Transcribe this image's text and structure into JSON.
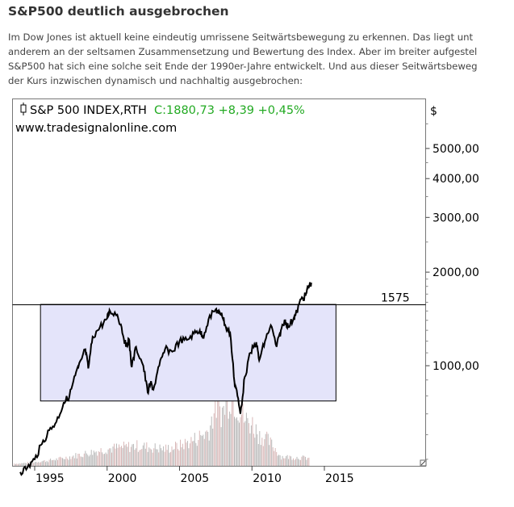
{
  "article": {
    "title": "S&P500 deutlich ausgebrochen",
    "paragraph_lines": [
      "Im Dow Jones ist aktuell keine eindeutig umrissene Seitwärtsbewegung zu erkennen. Das liegt unt",
      "anderem an der seltsamen Zusammensetzung und Bewertung des Index. Aber im breiter aufgestel",
      "S&P500 hat sich eine solche seit Ende der 1990er-Jahre entwickelt. Und aus dieser Seitwärtsbeweg",
      "der Kurs inzwischen dynamisch und nachhaltig ausgebrochen:"
    ]
  },
  "chart_data": {
    "type": "line",
    "instrument": "S&P 500 INDEX,RTH",
    "quote": "C:1880,73 +8,39 +0,45%",
    "source": "www.tradesignalonline.com",
    "currency_label": "$",
    "y_scale": "log",
    "ylim": [
      430,
      6500
    ],
    "xlim": [
      1993.5,
      2021.6
    ],
    "y_ticks": [
      {
        "v": 5000,
        "label": "5000,00"
      },
      {
        "v": 4000,
        "label": "4000,00"
      },
      {
        "v": 3000,
        "label": "3000,00"
      },
      {
        "v": 2000,
        "label": "2000,00"
      },
      {
        "v": 1000,
        "label": "1000,00"
      }
    ],
    "x_ticks": [
      {
        "v": 1995,
        "label": "1995"
      },
      {
        "v": 2000,
        "label": "2000"
      },
      {
        "v": 2005,
        "label": "2005"
      },
      {
        "v": 2010,
        "label": "2010"
      },
      {
        "v": 2015,
        "label": "2015"
      }
    ],
    "horizontal_line": {
      "value": 1575,
      "label": "1575"
    },
    "range_box": {
      "x_start": 1995.4,
      "x_end": 2015.8,
      "low": 770,
      "high": 1575,
      "color": "#e4e4fa"
    },
    "series": [
      {
        "color": "#000000",
        "x": [
          1994.0,
          1994.5,
          1995.0,
          1995.5,
          1996.0,
          1996.5,
          1997.0,
          1997.4,
          1997.8,
          1998.0,
          1998.5,
          1998.7,
          1999.0,
          1999.5,
          2000.0,
          2000.2,
          2000.7,
          2001.0,
          2001.3,
          2001.5,
          2001.7,
          2002.0,
          2002.5,
          2002.8,
          2003.0,
          2003.2,
          2003.6,
          2004.0,
          2004.5,
          2005.0,
          2005.5,
          2006.0,
          2006.4,
          2006.6,
          2007.0,
          2007.5,
          2007.7,
          2007.9,
          2008.2,
          2008.5,
          2008.8,
          2008.9,
          2009.2,
          2009.5,
          2009.9,
          2010.3,
          2010.5,
          2010.9,
          2011.3,
          2011.7,
          2012.0,
          2012.3,
          2012.5,
          2012.9,
          2013.0,
          2013.4,
          2013.7,
          2013.9,
          2014.1
        ],
        "y": [
          455,
          470,
          500,
          560,
          620,
          660,
          760,
          800,
          930,
          980,
          1130,
          980,
          1240,
          1330,
          1420,
          1500,
          1460,
          1330,
          1150,
          1220,
          990,
          1150,
          1000,
          820,
          880,
          840,
          1000,
          1130,
          1110,
          1200,
          1210,
          1270,
          1300,
          1230,
          1410,
          1520,
          1470,
          1480,
          1330,
          1270,
          880,
          850,
          700,
          920,
          1100,
          1190,
          1040,
          1200,
          1350,
          1150,
          1300,
          1400,
          1330,
          1430,
          1450,
          1640,
          1680,
          1800,
          1850
        ]
      }
    ],
    "volume_relative": {
      "x": [
        1994,
        1995,
        1996,
        1997,
        1998,
        1999,
        2000,
        2001,
        2002,
        2003,
        2004,
        2005,
        2006,
        2007,
        2007.5,
        2008,
        2008.5,
        2009,
        2009.5,
        2010,
        2010.5,
        2011,
        2011.5,
        2012,
        2013,
        2014
      ],
      "y": [
        3,
        5,
        7,
        10,
        14,
        18,
        22,
        24,
        26,
        24,
        22,
        26,
        34,
        45,
        80,
        70,
        95,
        80,
        60,
        55,
        40,
        35,
        25,
        12,
        11,
        10
      ]
    }
  }
}
